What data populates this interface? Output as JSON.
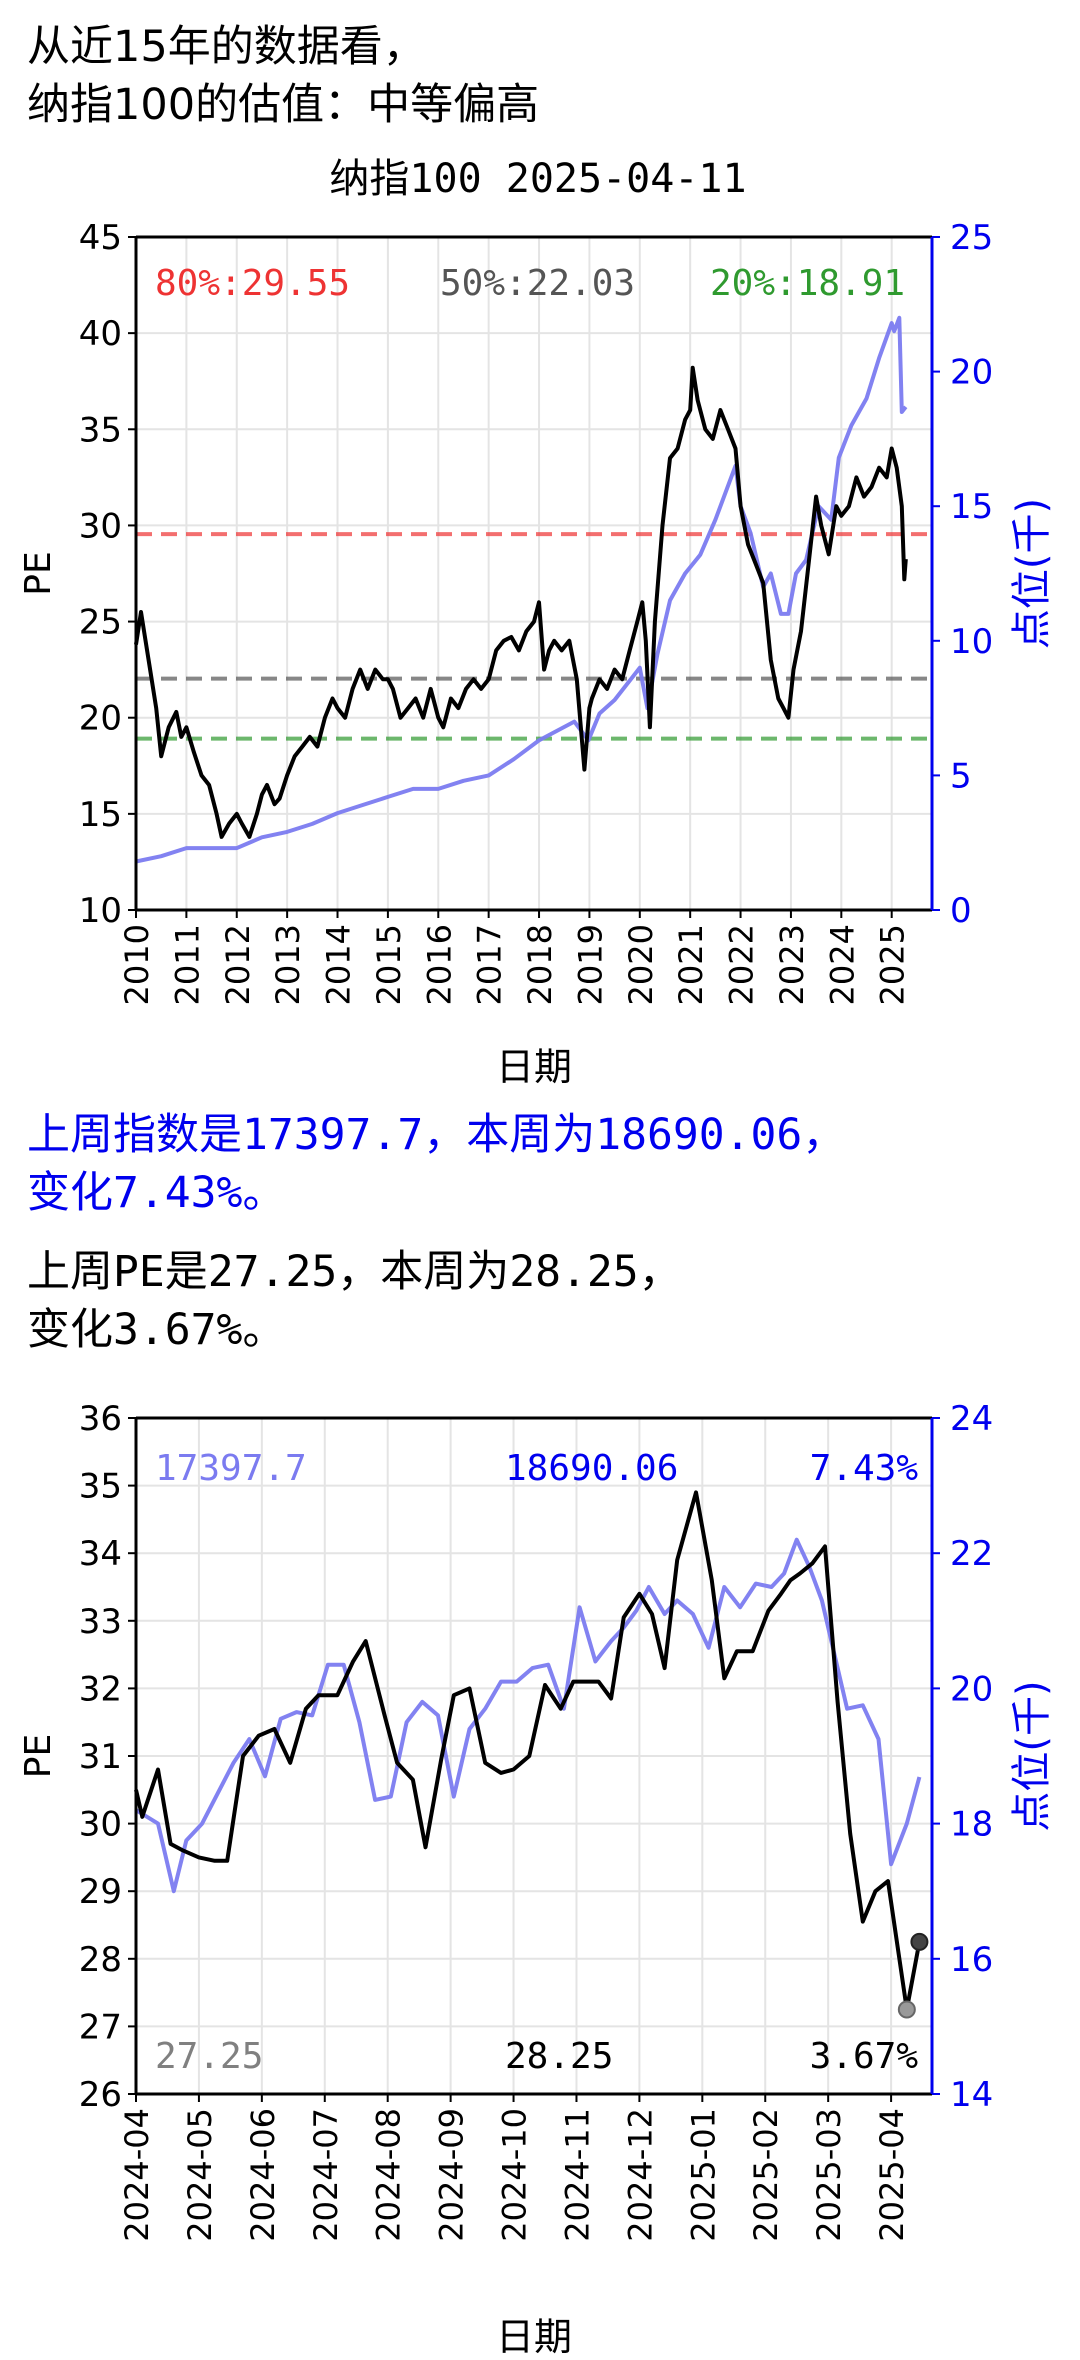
{
  "header": {
    "line1": "从近15年的数据看，",
    "line2": "纳指100的估值：中等偏高"
  },
  "summary": {
    "index_line1": "上周指数是17397.7，本周为18690.06，",
    "index_line2": "变化7.43%。",
    "pe_line1": "上周PE是27.25，本周为28.25，",
    "pe_line2": "变化3.67%。"
  },
  "colors": {
    "pe": "#000000",
    "index": "#7b7bf0",
    "axis_right": "#0000ee",
    "p80": "#ee3333",
    "p50": "#555555",
    "p20": "#2f9a2f",
    "summary_blue": "#0000ee",
    "grey_label": "#808080"
  },
  "chart_data": [
    {
      "type": "line",
      "title": "纳指100 2025-04-11",
      "xlabel": "日期",
      "ylabel": "PE",
      "y2label": "点位(千)",
      "xticks": [
        "2010",
        "2011",
        "2012",
        "2013",
        "2014",
        "2015",
        "2016",
        "2017",
        "2018",
        "2019",
        "2020",
        "2021",
        "2022",
        "2023",
        "2024",
        "2025"
      ],
      "yticks": [
        "10",
        "15",
        "20",
        "25",
        "30",
        "35",
        "40",
        "45"
      ],
      "y2ticks": [
        "0",
        "5",
        "10",
        "15",
        "20",
        "25"
      ],
      "xlim": [
        2010.0,
        2025.8
      ],
      "ylim": [
        10,
        45
      ],
      "y2lim": [
        0,
        25
      ],
      "grid": true,
      "percentile_labels": [
        "80%:29.55",
        "50%:22.03",
        "20%:18.91"
      ],
      "percentile_lines": [
        29.55,
        22.03,
        18.91
      ],
      "series": [
        {
          "name": "PE",
          "axis": "left",
          "x": [
            2010.0,
            2010.1,
            2010.25,
            2010.4,
            2010.5,
            2010.65,
            2010.8,
            2010.9,
            2011.0,
            2011.15,
            2011.3,
            2011.45,
            2011.6,
            2011.7,
            2011.85,
            2012.0,
            2012.1,
            2012.25,
            2012.4,
            2012.5,
            2012.6,
            2012.75,
            2012.85,
            2013.0,
            2013.15,
            2013.3,
            2013.45,
            2013.6,
            2013.75,
            2013.9,
            2014.0,
            2014.15,
            2014.3,
            2014.45,
            2014.6,
            2014.75,
            2014.9,
            2015.0,
            2015.1,
            2015.25,
            2015.4,
            2015.55,
            2015.7,
            2015.85,
            2016.0,
            2016.1,
            2016.25,
            2016.4,
            2016.55,
            2016.7,
            2016.85,
            2017.0,
            2017.15,
            2017.3,
            2017.45,
            2017.6,
            2017.75,
            2017.9,
            2018.0,
            2018.1,
            2018.2,
            2018.3,
            2018.45,
            2018.6,
            2018.75,
            2018.9,
            2019.0,
            2019.05,
            2019.2,
            2019.35,
            2019.5,
            2019.65,
            2019.8,
            2019.95,
            2020.05,
            2020.12,
            2020.2,
            2020.3,
            2020.45,
            2020.6,
            2020.75,
            2020.9,
            2021.0,
            2021.05,
            2021.15,
            2021.3,
            2021.45,
            2021.6,
            2021.75,
            2021.9,
            2022.0,
            2022.15,
            2022.3,
            2022.45,
            2022.6,
            2022.75,
            2022.85,
            2022.95,
            2023.05,
            2023.2,
            2023.35,
            2023.5,
            2023.6,
            2023.75,
            2023.9,
            2024.0,
            2024.15,
            2024.3,
            2024.45,
            2024.6,
            2024.75,
            2024.9,
            2025.0,
            2025.1,
            2025.2,
            2025.25,
            2025.28
          ],
          "y": [
            23.8,
            25.5,
            23.0,
            20.5,
            18.0,
            19.5,
            20.3,
            19.0,
            19.5,
            18.2,
            17.0,
            16.5,
            15.0,
            13.8,
            14.5,
            15.0,
            14.5,
            13.8,
            15.0,
            16.0,
            16.5,
            15.5,
            15.8,
            17.0,
            18.0,
            18.5,
            19.0,
            18.5,
            20.0,
            21.0,
            20.5,
            20.0,
            21.5,
            22.5,
            21.5,
            22.5,
            22.0,
            22.0,
            21.5,
            20.0,
            20.5,
            21.0,
            20.0,
            21.5,
            20.0,
            19.5,
            21.0,
            20.5,
            21.5,
            22.0,
            21.5,
            22.0,
            23.5,
            24.0,
            24.2,
            23.5,
            24.5,
            25.0,
            26.0,
            22.5,
            23.5,
            24.0,
            23.5,
            24.0,
            22.0,
            17.3,
            20.5,
            21.0,
            22.0,
            21.5,
            22.5,
            22.0,
            23.5,
            25.0,
            26.0,
            24.0,
            19.5,
            25.0,
            30.0,
            33.5,
            34.0,
            35.5,
            36.0,
            38.2,
            36.5,
            35.0,
            34.5,
            36.0,
            35.0,
            34.0,
            31.0,
            29.0,
            28.0,
            27.0,
            23.0,
            21.0,
            20.5,
            20.0,
            22.5,
            24.5,
            28.0,
            31.5,
            30.0,
            28.5,
            31.0,
            30.5,
            31.0,
            32.5,
            31.5,
            32.0,
            33.0,
            32.5,
            34.0,
            33.0,
            31.0,
            27.2,
            28.25
          ]
        },
        {
          "name": "点位",
          "axis": "right",
          "x": [
            2010.0,
            2010.5,
            2011.0,
            2011.5,
            2012.0,
            2012.5,
            2013.0,
            2013.5,
            2014.0,
            2014.5,
            2015.0,
            2015.5,
            2016.0,
            2016.5,
            2017.0,
            2017.5,
            2018.0,
            2018.7,
            2018.98,
            2019.2,
            2019.5,
            2020.0,
            2020.15,
            2020.35,
            2020.6,
            2020.9,
            2021.2,
            2021.5,
            2021.9,
            2022.0,
            2022.2,
            2022.45,
            2022.6,
            2022.8,
            2022.95,
            2023.1,
            2023.3,
            2023.55,
            2023.8,
            2023.95,
            2024.2,
            2024.5,
            2024.75,
            2025.0,
            2025.05,
            2025.15,
            2025.2,
            2025.28
          ],
          "y": [
            1.8,
            2.0,
            2.3,
            2.3,
            2.3,
            2.7,
            2.9,
            3.2,
            3.6,
            3.9,
            4.2,
            4.5,
            4.5,
            4.8,
            5.0,
            5.6,
            6.3,
            7.0,
            6.3,
            7.3,
            7.8,
            9.0,
            7.5,
            9.5,
            11.5,
            12.5,
            13.2,
            14.5,
            16.5,
            15.0,
            14.0,
            12.0,
            12.5,
            11.0,
            11.0,
            12.5,
            13.0,
            15.0,
            14.5,
            16.8,
            18.0,
            19.0,
            20.5,
            21.8,
            21.5,
            22.0,
            18.5,
            18.69
          ]
        }
      ]
    },
    {
      "type": "line",
      "title": "",
      "xlabel": "日期",
      "ylabel": "PE",
      "y2label": "点位(千)",
      "xticks": [
        "2024-04",
        "2024-05",
        "2024-06",
        "2024-07",
        "2024-08",
        "2024-09",
        "2024-10",
        "2024-11",
        "2024-12",
        "2025-01",
        "2025-02",
        "2025-03",
        "2025-04"
      ],
      "yticks": [
        "26",
        "27",
        "28",
        "29",
        "30",
        "31",
        "32",
        "33",
        "34",
        "35",
        "36"
      ],
      "y2ticks": [
        "14",
        "16",
        "18",
        "20",
        "22",
        "24"
      ],
      "xlim": [
        0,
        12.65
      ],
      "ylim": [
        26,
        36
      ],
      "y2lim": [
        14,
        24
      ],
      "grid": true,
      "corner_labels": [
        "17397.7",
        "18690.06",
        "7.43%",
        "27.25",
        "28.25",
        "3.67%"
      ],
      "series": [
        {
          "name": "PE",
          "axis": "left",
          "x": [
            0.0,
            0.1,
            0.35,
            0.55,
            0.75,
            1.0,
            1.25,
            1.45,
            1.7,
            1.95,
            2.2,
            2.45,
            2.7,
            2.9,
            3.2,
            3.45,
            3.65,
            3.95,
            4.15,
            4.4,
            4.6,
            4.85,
            5.05,
            5.3,
            5.55,
            5.8,
            6.0,
            6.25,
            6.5,
            6.75,
            6.95,
            7.15,
            7.35,
            7.55,
            7.75,
            8.0,
            8.2,
            8.4,
            8.6,
            8.9,
            9.15,
            9.35,
            9.55,
            9.8,
            10.05,
            10.25,
            10.4,
            10.55,
            10.75,
            10.95,
            11.15,
            11.35,
            11.55,
            11.75,
            11.95,
            12.25,
            12.45
          ],
          "y": [
            30.5,
            30.1,
            30.8,
            29.7,
            29.6,
            29.5,
            29.45,
            29.45,
            31.0,
            31.3,
            31.4,
            30.9,
            31.7,
            31.9,
            31.9,
            32.4,
            32.7,
            31.6,
            30.9,
            30.65,
            29.65,
            30.95,
            31.9,
            32.0,
            30.9,
            30.75,
            30.8,
            31.0,
            32.05,
            31.7,
            32.1,
            32.1,
            32.1,
            31.85,
            33.05,
            33.4,
            33.1,
            32.3,
            33.9,
            34.9,
            33.6,
            32.15,
            32.55,
            32.55,
            33.15,
            33.4,
            33.6,
            33.7,
            33.85,
            34.1,
            31.8,
            29.85,
            28.55,
            29.0,
            29.15,
            27.25,
            28.25
          ]
        },
        {
          "name": "点位",
          "axis": "right",
          "x": [
            0.0,
            0.35,
            0.6,
            0.8,
            1.05,
            1.3,
            1.55,
            1.8,
            2.05,
            2.3,
            2.55,
            2.8,
            3.05,
            3.3,
            3.55,
            3.8,
            4.05,
            4.3,
            4.55,
            4.8,
            5.05,
            5.3,
            5.55,
            5.8,
            6.05,
            6.3,
            6.55,
            6.8,
            7.05,
            7.3,
            7.55,
            7.75,
            7.95,
            8.15,
            8.4,
            8.6,
            8.85,
            9.1,
            9.35,
            9.6,
            9.85,
            10.1,
            10.3,
            10.5,
            10.7,
            10.9,
            11.1,
            11.3,
            11.55,
            11.8,
            12.0,
            12.25,
            12.45
          ],
          "y": [
            18.2,
            18.0,
            17.0,
            17.75,
            18.0,
            18.45,
            18.9,
            19.25,
            18.7,
            19.55,
            19.65,
            19.6,
            20.35,
            20.35,
            19.5,
            18.35,
            18.4,
            19.5,
            19.8,
            19.6,
            18.4,
            19.4,
            19.7,
            20.1,
            20.1,
            20.3,
            20.35,
            19.7,
            21.2,
            20.4,
            20.7,
            20.9,
            21.15,
            21.5,
            21.1,
            21.3,
            21.1,
            20.6,
            21.5,
            21.2,
            21.55,
            21.5,
            21.7,
            22.2,
            21.8,
            21.3,
            20.5,
            19.7,
            19.75,
            19.25,
            17.4,
            18.0,
            18.69
          ]
        }
      ]
    }
  ]
}
